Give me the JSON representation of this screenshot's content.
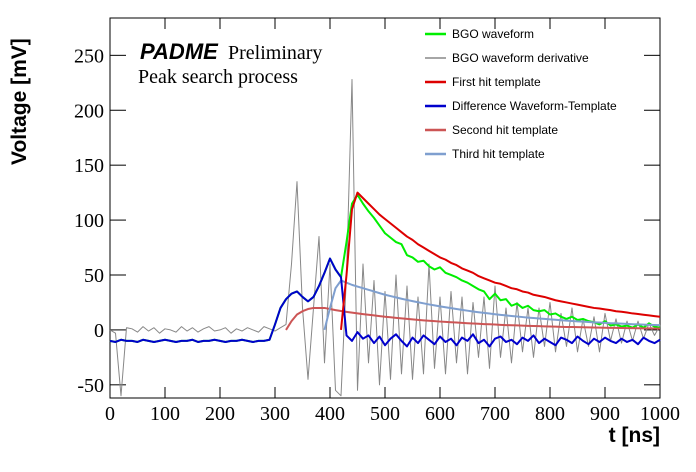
{
  "chart_data": {
    "type": "line",
    "annotations": {
      "brand": "PADME",
      "status": "Preliminary",
      "note": "Peak search process"
    },
    "x_label": "t [ns]",
    "y_label": "Voltage [mV]",
    "xlim": [
      0,
      1000
    ],
    "ylim": [
      -62,
      284
    ],
    "xticks": [
      0,
      100,
      200,
      300,
      400,
      500,
      600,
      700,
      800,
      900,
      1000
    ],
    "yticks": [
      -50,
      0,
      50,
      100,
      150,
      200,
      250
    ],
    "legend": "top-right",
    "x": [
      0,
      10,
      20,
      30,
      40,
      50,
      60,
      70,
      80,
      90,
      100,
      110,
      120,
      130,
      140,
      150,
      160,
      170,
      180,
      190,
      200,
      210,
      220,
      230,
      240,
      250,
      260,
      270,
      280,
      290,
      300,
      310,
      320,
      330,
      340,
      350,
      360,
      370,
      380,
      390,
      400,
      410,
      420,
      430,
      440,
      450,
      460,
      470,
      480,
      490,
      500,
      510,
      520,
      530,
      540,
      550,
      560,
      570,
      580,
      590,
      600,
      610,
      620,
      630,
      640,
      650,
      660,
      670,
      680,
      690,
      700,
      710,
      720,
      730,
      740,
      750,
      760,
      770,
      780,
      790,
      800,
      810,
      820,
      830,
      840,
      850,
      860,
      870,
      880,
      890,
      900,
      910,
      920,
      930,
      940,
      950,
      960,
      970,
      980,
      990,
      1000
    ],
    "series": [
      {
        "name": "BGO waveform derivative",
        "color": "#888888",
        "width": 1,
        "values": [
          0,
          -3,
          -60,
          2,
          1,
          -2,
          3,
          -1,
          2,
          -3,
          1,
          0,
          -2,
          3,
          -1,
          2,
          -2,
          1,
          3,
          -1,
          0,
          2,
          -3,
          1,
          -1,
          2,
          0,
          -2,
          3,
          1,
          -1,
          2,
          5,
          60,
          135,
          20,
          -45,
          20,
          85,
          -30,
          60,
          -55,
          -60,
          50,
          228,
          -55,
          60,
          -30,
          45,
          -50,
          35,
          -45,
          50,
          -40,
          40,
          -45,
          30,
          -40,
          60,
          -35,
          30,
          -40,
          35,
          -30,
          30,
          -40,
          25,
          -25,
          30,
          -35,
          40,
          -25,
          20,
          -30,
          25,
          -20,
          20,
          -25,
          20,
          -15,
          25,
          -20,
          15,
          -15,
          20,
          -20,
          10,
          -15,
          12,
          -20,
          15,
          -10,
          10,
          -12,
          8,
          -10,
          8,
          -8,
          6,
          -5,
          4
        ]
      },
      {
        "name": "BGO waveform",
        "color": "#00ee00",
        "width": 2,
        "values": [
          -10,
          -11,
          -9,
          -10,
          -10,
          -11,
          -9,
          -10,
          -11,
          -10,
          -9,
          -10,
          -11,
          -10,
          -10,
          -9,
          -11,
          -10,
          -10,
          -9,
          -10,
          -11,
          -10,
          -10,
          -9,
          -10,
          -11,
          -10,
          -10,
          -9,
          5,
          20,
          28,
          33,
          35,
          30,
          26,
          30,
          40,
          52,
          65,
          55,
          48,
          80,
          115,
          123,
          115,
          108,
          102,
          95,
          88,
          84,
          80,
          78,
          68,
          66,
          62,
          63,
          58,
          55,
          57,
          52,
          50,
          48,
          45,
          43,
          40,
          37,
          35,
          28,
          33,
          27,
          28,
          22,
          24,
          20,
          22,
          18,
          17,
          18,
          14,
          15,
          12,
          10,
          12,
          9,
          10,
          8,
          7,
          5,
          8,
          4,
          5,
          3,
          4,
          2,
          5,
          2,
          6,
          3,
          2
        ]
      },
      {
        "name": "Second hit template",
        "color": "#cc5555",
        "width": 2,
        "values": [
          null,
          null,
          null,
          null,
          null,
          null,
          null,
          null,
          null,
          null,
          null,
          null,
          null,
          null,
          null,
          null,
          null,
          null,
          null,
          null,
          null,
          null,
          null,
          null,
          null,
          null,
          null,
          null,
          null,
          null,
          null,
          null,
          0,
          8,
          14,
          17,
          19,
          20,
          20,
          20,
          19,
          18,
          17.2,
          16.4,
          15.7,
          15.1,
          14.4,
          13.8,
          13.2,
          12.6,
          12.0,
          11.5,
          11.0,
          10.5,
          10.0,
          9.6,
          9.1,
          8.7,
          8.3,
          8.0,
          7.6,
          7.3,
          7.0,
          6.7,
          6.4,
          6.1,
          5.8,
          5.6,
          5.3,
          5.1,
          4.9,
          4.6,
          4.4,
          4.2,
          4.1,
          3.9,
          3.7,
          3.5,
          3.4,
          3.2,
          3.1,
          3.0,
          2.8,
          2.7,
          2.6,
          2.5,
          2.4,
          2.3,
          2.2,
          2.1,
          2.0,
          1.9,
          1.8,
          1.7,
          1.6,
          1.6,
          1.5,
          1.4,
          1.4,
          1.3,
          1.2
        ]
      },
      {
        "name": "Third hit template",
        "color": "#7f9fcf",
        "width": 2,
        "values": [
          null,
          null,
          null,
          null,
          null,
          null,
          null,
          null,
          null,
          null,
          null,
          null,
          null,
          null,
          null,
          null,
          null,
          null,
          null,
          null,
          null,
          null,
          null,
          null,
          null,
          null,
          null,
          null,
          null,
          null,
          null,
          null,
          null,
          null,
          null,
          null,
          null,
          null,
          null,
          0,
          20,
          38,
          45,
          43,
          41,
          39.5,
          38,
          36.5,
          35,
          33.5,
          32,
          30.8,
          29.6,
          28.4,
          27.3,
          26.2,
          25.2,
          24.2,
          23.2,
          22.3,
          21.4,
          20.6,
          19.8,
          19,
          18.2,
          17.5,
          16.8,
          16.1,
          15.5,
          14.9,
          14.3,
          13.7,
          13.2,
          12.7,
          12.2,
          11.7,
          11.2,
          10.8,
          10.4,
          10,
          9.6,
          9.2,
          8.8,
          8.5,
          8.1,
          7.8,
          7.5,
          7.2,
          6.9,
          6.7,
          6.4,
          6.1,
          5.9,
          5.7,
          5.5,
          5.2,
          5,
          4.8,
          4.6,
          4.5,
          4.3
        ]
      },
      {
        "name": "Difference Waveform-Template",
        "color": "#0000cc",
        "width": 2,
        "values": [
          -10,
          -11,
          -9,
          -10,
          -10,
          -11,
          -9,
          -10,
          -11,
          -10,
          -9,
          -10,
          -11,
          -10,
          -10,
          -9,
          -11,
          -10,
          -10,
          -9,
          -10,
          -11,
          -10,
          -10,
          -9,
          -10,
          -11,
          -10,
          -10,
          -9,
          5,
          20,
          28,
          33,
          35,
          30,
          26,
          30,
          40,
          52,
          65,
          55,
          48,
          -5,
          -10,
          -2,
          -8,
          -5,
          -12,
          -6,
          -14,
          -8,
          -4,
          -10,
          -15,
          -7,
          -12,
          -5,
          -9,
          -13,
          -6,
          -11,
          -8,
          -14,
          -7,
          -10,
          -4,
          -12,
          -9,
          -15,
          -8,
          -6,
          -11,
          -9,
          -13,
          -7,
          -10,
          -5,
          -12,
          -8,
          -11,
          -14,
          -7,
          -9,
          -12,
          -6,
          -10,
          -13,
          -8,
          -11,
          -7,
          -10,
          -12,
          -8,
          -11,
          -9,
          -13,
          -7,
          -10,
          -12,
          -9
        ]
      },
      {
        "name": "First hit template",
        "color": "#dd0000",
        "width": 2,
        "values": [
          null,
          null,
          null,
          null,
          null,
          null,
          null,
          null,
          null,
          null,
          null,
          null,
          null,
          null,
          null,
          null,
          null,
          null,
          null,
          null,
          null,
          null,
          null,
          null,
          null,
          null,
          null,
          null,
          null,
          null,
          null,
          null,
          null,
          null,
          null,
          null,
          null,
          null,
          null,
          null,
          null,
          null,
          0,
          50,
          110,
          125,
          120,
          115,
          110,
          105,
          101,
          97,
          93,
          89,
          85,
          82,
          78,
          75,
          72,
          69,
          66,
          64,
          61,
          59,
          56,
          54,
          52,
          49,
          47,
          45,
          43,
          42,
          40,
          38,
          37,
          35,
          34,
          32,
          31,
          30,
          28.5,
          27,
          26,
          25,
          24,
          23,
          22,
          21,
          20,
          19.5,
          18.7,
          18,
          17,
          16.5,
          15.8,
          15,
          14.5,
          13.8,
          13.2,
          12.6,
          12
        ]
      }
    ],
    "legend_order": [
      1,
      0,
      5,
      4,
      2,
      3
    ]
  }
}
